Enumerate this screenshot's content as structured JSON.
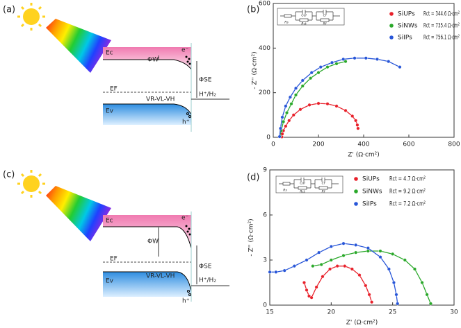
{
  "panel_labels": [
    "(a)",
    "(b)",
    "(c)",
    "(d)"
  ],
  "diagrams": [
    {
      "conduction_band": "Ec",
      "electron": "e⁻",
      "work_function": "ΦW",
      "band_bending": "ΦSE",
      "fermi_level": "EF",
      "redox": "H⁺/H₂",
      "voltage": "VR-VL-VH",
      "valence_band": "Ev",
      "hole": "h⁺"
    },
    {
      "conduction_band": "Ec",
      "electron": "e⁻",
      "work_function": "ΦW",
      "band_bending": "ΦSE",
      "fermi_level": "EF",
      "redox": "H⁺/H₂",
      "voltage": "VR-VL-VH",
      "valence_band": "Ev",
      "hole": "h⁺"
    }
  ],
  "chart_data": [
    {
      "type": "scatter",
      "x_label": "Z' (Ω·cm²)",
      "y_label": "- Z'' (Ω·cm²)",
      "xlim": [
        0,
        800
      ],
      "xticks": [
        0,
        200,
        400,
        600,
        800
      ],
      "ylim": [
        0,
        600
      ],
      "yticks": [
        0,
        200,
        400,
        600
      ],
      "circuit_labels": [
        "Rs",
        "Cdl",
        "Rct",
        "Cf",
        "Rf"
      ],
      "annotations": [
        "Rct = 344.6 Ω·cm²",
        "Rct = 735.4 Ω·cm²",
        "Rct = 756.1 Ω·cm²"
      ],
      "series": [
        {
          "name": "SiUPs",
          "color": "#e8202a",
          "x": [
            38,
            40,
            45,
            55,
            70,
            90,
            120,
            160,
            200,
            240,
            280,
            320,
            350,
            365,
            372,
            375
          ],
          "values": [
            2,
            15,
            30,
            50,
            75,
            100,
            125,
            145,
            152,
            150,
            140,
            120,
            95,
            75,
            55,
            40
          ]
        },
        {
          "name": "SiNWs",
          "color": "#2aa82a",
          "x": [
            30,
            35,
            45,
            60,
            80,
            100,
            130,
            165,
            200,
            240,
            280,
            320
          ],
          "values": [
            5,
            30,
            70,
            110,
            150,
            190,
            230,
            265,
            290,
            315,
            330,
            340
          ]
        },
        {
          "name": "SiIPs",
          "color": "#2856d8",
          "x": [
            28,
            32,
            40,
            55,
            75,
            100,
            130,
            170,
            210,
            260,
            310,
            360,
            410,
            460,
            510,
            560
          ],
          "values": [
            3,
            40,
            90,
            140,
            180,
            220,
            255,
            290,
            315,
            335,
            350,
            355,
            355,
            350,
            340,
            315
          ]
        }
      ]
    },
    {
      "type": "scatter",
      "x_label": "Z' (Ω·cm²)",
      "y_label": "- Z'' (Ω·cm²)",
      "xlim": [
        15,
        30
      ],
      "xticks": [
        15,
        20,
        25,
        30
      ],
      "ylim": [
        0,
        9
      ],
      "yticks": [
        0,
        3,
        6,
        9
      ],
      "circuit_labels": [
        "Rs",
        "Cdl",
        "Rct",
        "Cf",
        "Rf"
      ],
      "annotations": [
        "Rct = 4.7 Ω·cm²",
        "Rct = 9.2 Ω·cm²",
        "Rct = 7.2 Ω·cm²"
      ],
      "series": [
        {
          "name": "SiUPs",
          "color": "#e8202a",
          "x": [
            17.8,
            18.0,
            18.2,
            18.4,
            18.8,
            19.3,
            19.9,
            20.5,
            21.1,
            21.7,
            22.3,
            22.8,
            23.1,
            23.3
          ],
          "values": [
            1.5,
            1.0,
            0.6,
            0.5,
            1.2,
            1.9,
            2.4,
            2.6,
            2.6,
            2.4,
            2.0,
            1.3,
            0.7,
            0.2
          ]
        },
        {
          "name": "SiNWs",
          "color": "#2aa82a",
          "x": [
            18.5,
            19.2,
            20,
            21,
            22,
            23,
            24,
            25,
            26,
            26.8,
            27.4,
            27.8,
            28.1
          ],
          "values": [
            2.6,
            2.7,
            3.0,
            3.3,
            3.5,
            3.6,
            3.6,
            3.4,
            3.0,
            2.4,
            1.5,
            0.7,
            0.1
          ]
        },
        {
          "name": "SiIPs",
          "color": "#2856d8",
          "x": [
            15,
            15.5,
            16.2,
            17,
            18,
            19,
            20,
            21,
            22,
            23,
            24,
            24.7,
            25.1,
            25.3,
            25.4
          ],
          "values": [
            2.2,
            2.2,
            2.3,
            2.6,
            3.0,
            3.5,
            3.9,
            4.1,
            4.0,
            3.8,
            3.2,
            2.4,
            1.5,
            0.7,
            0.1
          ]
        }
      ]
    }
  ]
}
